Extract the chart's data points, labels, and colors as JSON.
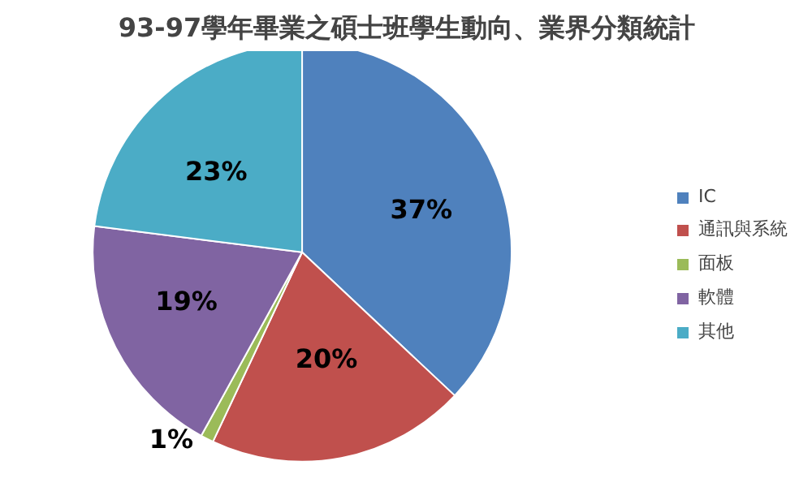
{
  "chart_data": {
    "type": "pie",
    "title": "93-97學年畢業之碩士班學生動向、業界分類統計",
    "categories": [
      "IC",
      "通訊與系統",
      "面板",
      "軟體",
      "其他"
    ],
    "values": [
      37,
      20,
      1,
      19,
      23
    ],
    "colors": [
      "#4f81bd",
      "#c0504d",
      "#9bbb59",
      "#8064a2",
      "#4bacc6"
    ],
    "value_labels": [
      "37%",
      "20%",
      "1%",
      "19%",
      "23%"
    ],
    "legend": "right"
  }
}
